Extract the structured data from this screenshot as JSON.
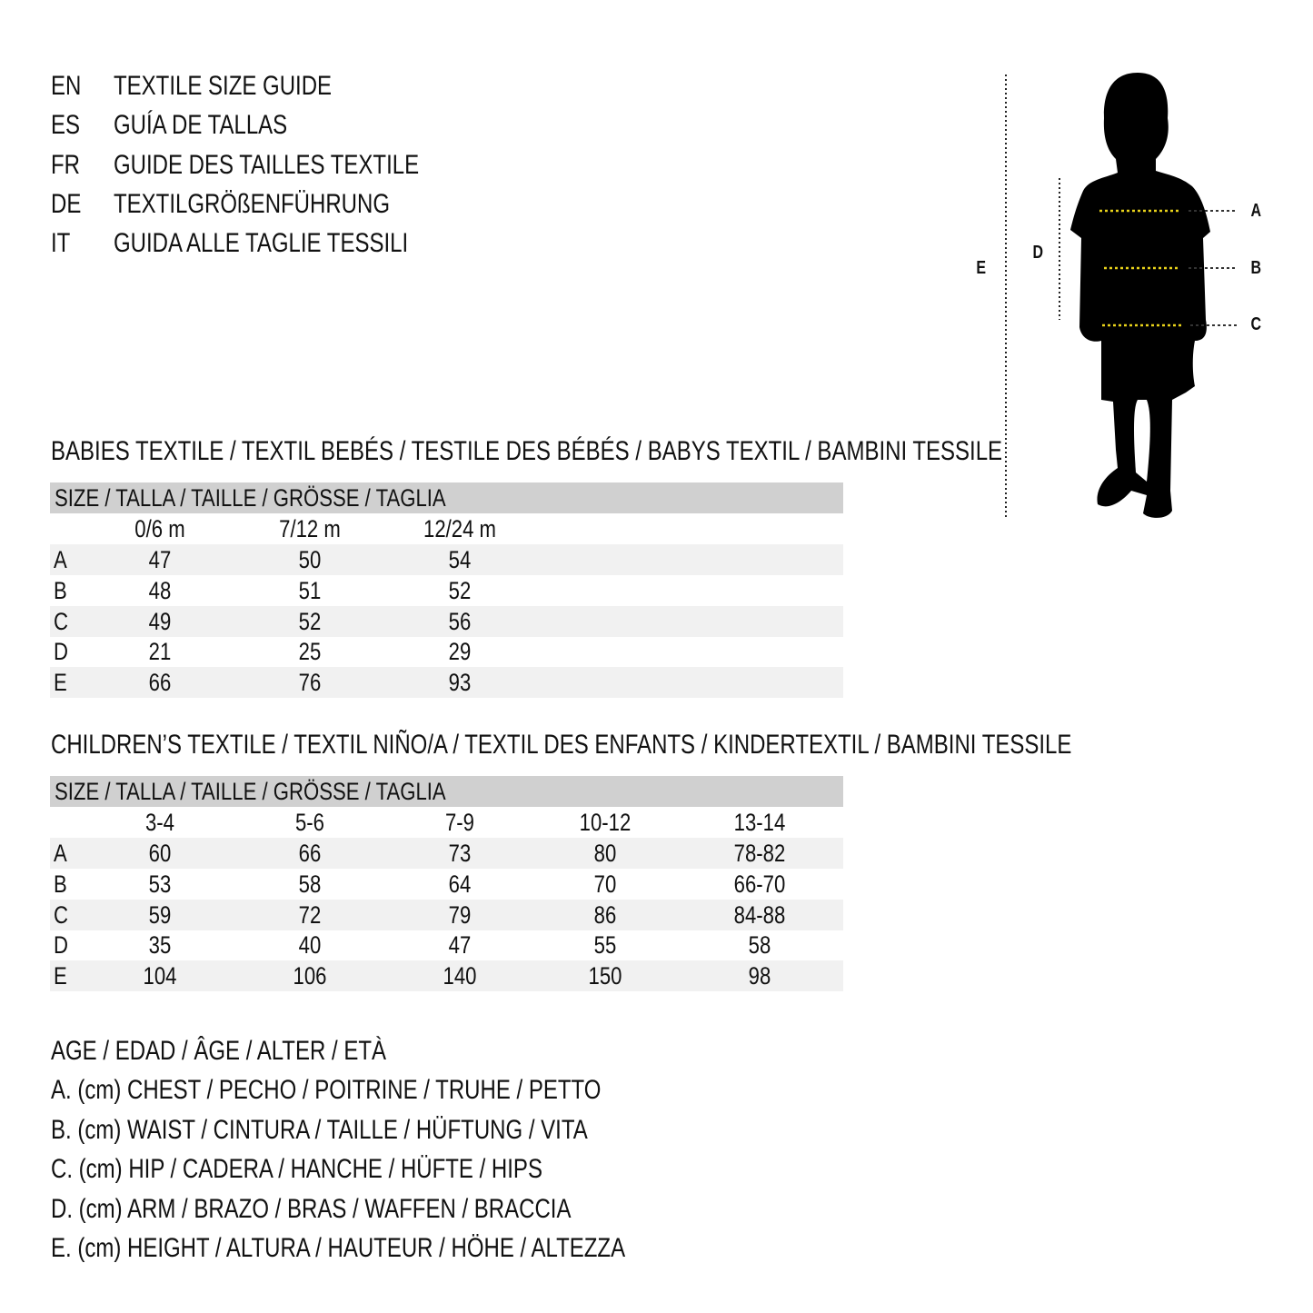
{
  "titles": [
    {
      "code": "EN",
      "text": "TEXTILE SIZE GUIDE"
    },
    {
      "code": "ES",
      "text": "GUÍA DE TALLAS"
    },
    {
      "code": "FR",
      "text": "GUIDE DES TAILLES TEXTILE"
    },
    {
      "code": "DE",
      "text": "TEXTILGRÖßENFÜHRUNG"
    },
    {
      "code": "IT",
      "text": "GUIDA ALLE TAGLIE TESSILI"
    }
  ],
  "figure": {
    "labels": {
      "a": "A",
      "b": "B",
      "c": "C",
      "d": "D",
      "e": "E"
    },
    "colors": {
      "measure_line": "#e8d21a",
      "silhouette": "#000000"
    }
  },
  "babies": {
    "heading": "BABIES TEXTILE / TEXTIL BEBÉS / TESTILE DES BÉBÉS / BABYS TEXTIL / BAMBINI TESSILE",
    "size_header": "SIZE / TALLA / TAILLE / GRÖSSE / TAGLIA",
    "columns": [
      "0/6 m",
      "7/12 m",
      "12/24 m"
    ],
    "rows": [
      {
        "label": "A",
        "values": [
          "47",
          "50",
          "54"
        ]
      },
      {
        "label": "B",
        "values": [
          "48",
          "51",
          "52"
        ]
      },
      {
        "label": "C",
        "values": [
          "49",
          "52",
          "56"
        ]
      },
      {
        "label": "D",
        "values": [
          "21",
          "25",
          "29"
        ]
      },
      {
        "label": "E",
        "values": [
          "66",
          "76",
          "93"
        ]
      }
    ]
  },
  "children": {
    "heading": "CHILDREN’S TEXTILE / TEXTIL NIÑO/A / TEXTIL DES ENFANTS / KINDERTEXTIL / BAMBINI TESSILE",
    "size_header": "SIZE / TALLA / TAILLE / GRÖSSE / TAGLIA",
    "columns": [
      "3-4",
      "5-6",
      "7-9",
      "10-12",
      "13-14"
    ],
    "rows": [
      {
        "label": "A",
        "values": [
          "60",
          "66",
          "73",
          "80",
          "78-82"
        ]
      },
      {
        "label": "B",
        "values": [
          "53",
          "58",
          "64",
          "70",
          "66-70"
        ]
      },
      {
        "label": "C",
        "values": [
          "59",
          "72",
          "79",
          "86",
          "84-88"
        ]
      },
      {
        "label": "D",
        "values": [
          "35",
          "40",
          "47",
          "55",
          "58"
        ]
      },
      {
        "label": "E",
        "values": [
          "104",
          "106",
          "140",
          "150",
          "98"
        ]
      }
    ]
  },
  "legend": [
    "AGE / EDAD / ÂGE / ALTER / ETÀ",
    "A. (cm) CHEST / PECHO / POITRINE / TRUHE / PETTO",
    "B. (cm) WAIST / CINTURA / TAILLE / HÜFTUNG / VITA",
    "C. (cm) HIP / CADERA / HANCHE / HÜFTE / HIPS",
    "D. (cm) ARM / BRAZO / BRAS / WAFFEN / BRACCIA",
    "E. (cm) HEIGHT / ALTURA / HAUTEUR / HÖHE / ALTEZZA"
  ]
}
